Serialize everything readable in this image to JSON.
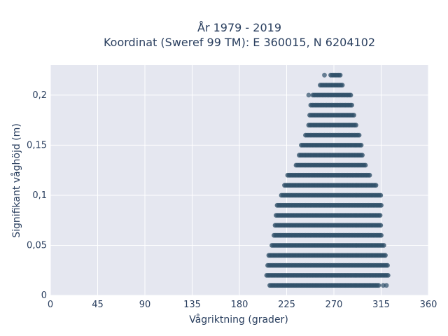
{
  "chart_data": {
    "type": "scatter",
    "title": "År 1979 - 2019",
    "subtitle": "Koordinat (Sweref 99 TM): E 360015, N 6204102",
    "xlabel": "Vågriktning (grader)",
    "ylabel": "Signifikant våghöjd (m)",
    "xlim": [
      0,
      360
    ],
    "ylim": [
      0,
      0.23
    ],
    "x_ticks": [
      0,
      45,
      90,
      135,
      180,
      225,
      270,
      315,
      360
    ],
    "x_tick_labels": [
      "0",
      "45",
      "90",
      "135",
      "180",
      "225",
      "270",
      "315",
      "360"
    ],
    "y_ticks": [
      0,
      0.05,
      0.1,
      0.15,
      0.2
    ],
    "y_tick_labels": [
      "0",
      "0,05",
      "0,1",
      "0,15",
      "0,2"
    ],
    "grid": true,
    "marker_color": "#2f5069",
    "plot_background": "#e5e7f0",
    "bands": [
      {
        "y": 0.01,
        "x_min": 209,
        "x_max": 313,
        "outliers": [
          317,
          320
        ]
      },
      {
        "y": 0.02,
        "x_min": 206,
        "x_max": 322
      },
      {
        "y": 0.03,
        "x_min": 207,
        "x_max": 321
      },
      {
        "y": 0.04,
        "x_min": 208,
        "x_max": 319
      },
      {
        "y": 0.05,
        "x_min": 211,
        "x_max": 318
      },
      {
        "y": 0.06,
        "x_min": 213,
        "x_max": 316
      },
      {
        "y": 0.07,
        "x_min": 214,
        "x_max": 315
      },
      {
        "y": 0.08,
        "x_min": 215,
        "x_max": 315
      },
      {
        "y": 0.09,
        "x_min": 216,
        "x_max": 315
      },
      {
        "y": 0.1,
        "x_min": 220,
        "x_max": 315
      },
      {
        "y": 0.11,
        "x_min": 223,
        "x_max": 310
      },
      {
        "y": 0.12,
        "x_min": 226,
        "x_max": 304
      },
      {
        "y": 0.13,
        "x_min": 234,
        "x_max": 301
      },
      {
        "y": 0.14,
        "x_min": 237,
        "x_max": 298
      },
      {
        "y": 0.15,
        "x_min": 239,
        "x_max": 296
      },
      {
        "y": 0.16,
        "x_min": 243,
        "x_max": 294
      },
      {
        "y": 0.17,
        "x_min": 246,
        "x_max": 292
      },
      {
        "y": 0.18,
        "x_min": 247,
        "x_max": 290
      },
      {
        "y": 0.19,
        "x_min": 248,
        "x_max": 288
      },
      {
        "y": 0.2,
        "x_min": 250,
        "x_max": 286,
        "outliers": [
          246
        ]
      },
      {
        "y": 0.21,
        "x_min": 257,
        "x_max": 279
      },
      {
        "y": 0.22,
        "x_min": 267,
        "x_max": 276,
        "outliers": [
          261
        ]
      }
    ]
  }
}
